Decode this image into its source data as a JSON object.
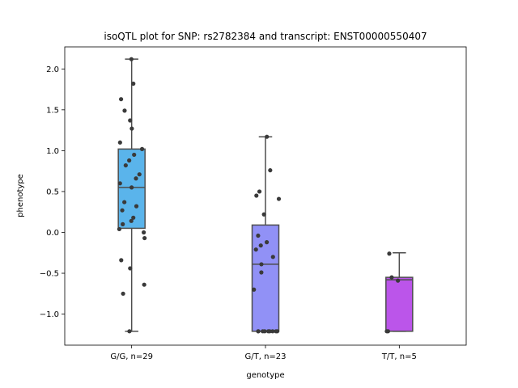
{
  "chart_data": {
    "type": "box",
    "title": "isoQTL plot for SNP: rs2782384 and transcript: ENST00000550407",
    "xlabel": "genotype",
    "ylabel": "phenotype",
    "ylim": [
      -1.38,
      2.27
    ],
    "yticks": [
      -1.0,
      -0.5,
      0.0,
      0.5,
      1.0,
      1.5,
      2.0
    ],
    "ytick_labels": [
      "−1.0",
      "−0.5",
      "0.0",
      "0.5",
      "1.0",
      "1.5",
      "2.0"
    ],
    "grid": false,
    "categories": [
      "G/G, n=29",
      "G/T, n=23",
      "T/T, n=5"
    ],
    "boxes": [
      {
        "category": "G/G, n=29",
        "color": "#5ab4eb",
        "whisker_low": -1.21,
        "q1": 0.05,
        "median": 0.55,
        "q3": 1.02,
        "whisker_high": 2.12
      },
      {
        "category": "G/T, n=23",
        "color": "#9191f6",
        "whisker_low": -1.21,
        "q1": -1.21,
        "median": -0.39,
        "q3": 0.09,
        "whisker_high": 1.17
      },
      {
        "category": "T/T, n=5",
        "color": "#bb55ea",
        "whisker_low": -1.21,
        "q1": -1.21,
        "median": -0.58,
        "q3": -0.55,
        "whisker_high": -0.25
      }
    ],
    "points": [
      [
        2.12,
        1.82,
        1.63,
        1.49,
        1.37,
        1.27,
        1.1,
        1.02,
        0.95,
        0.88,
        0.82,
        0.71,
        0.66,
        0.6,
        0.55,
        0.37,
        0.32,
        0.27,
        0.18,
        0.14,
        0.1,
        0.04,
        0.0,
        -0.07,
        -0.34,
        -0.44,
        -0.64,
        -0.75,
        -1.21
      ],
      [
        1.17,
        0.76,
        0.5,
        0.45,
        0.41,
        0.22,
        -0.04,
        -0.12,
        -0.16,
        -0.21,
        -0.3,
        -0.39,
        -0.49,
        -0.7,
        -1.21,
        -1.21,
        -1.21,
        -1.21,
        -1.21,
        -1.21,
        -1.21,
        -1.21,
        -1.21
      ],
      [
        -0.26,
        -0.55,
        -0.59,
        -1.21,
        -1.21
      ]
    ]
  }
}
